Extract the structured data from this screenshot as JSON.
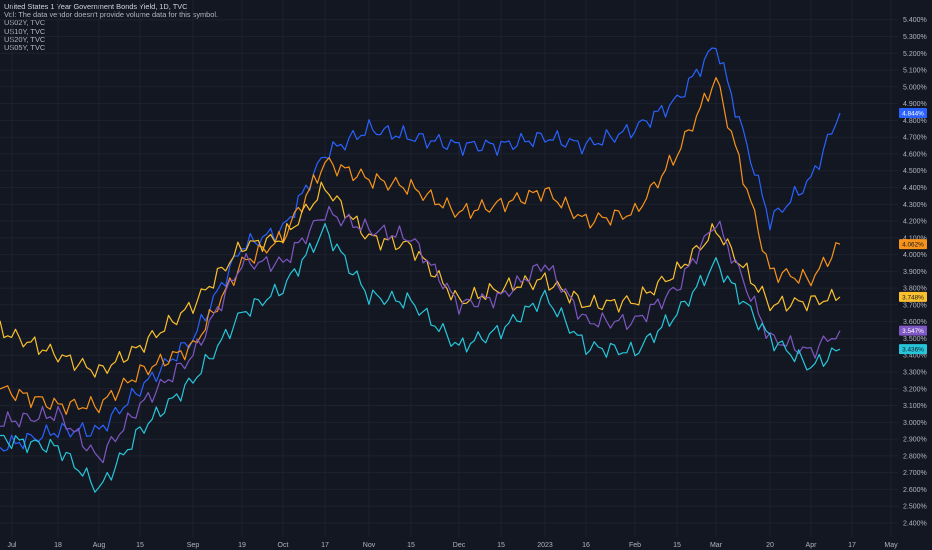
{
  "legend": {
    "title": "United States 1 Year Government Bonds Yield, 1D, TVC",
    "vol_note": "Vol: The data vendor doesn't provide volume data for this symbol.",
    "symbols": [
      "US02Y, TVC",
      "US10Y, TVC",
      "US20Y, TVC",
      "US05Y, TVC"
    ]
  },
  "currency_label": "$",
  "chart_data": {
    "type": "line",
    "grid": true,
    "ylim": [
      2.37,
      5.47
    ],
    "y_ticks": [
      "5.400%",
      "5.300%",
      "5.200%",
      "5.100%",
      "5.000%",
      "4.900%",
      "4.800%",
      "4.700%",
      "4.600%",
      "4.500%",
      "4.400%",
      "4.300%",
      "4.200%",
      "4.100%",
      "4.000%",
      "3.900%",
      "3.800%",
      "3.700%",
      "3.600%",
      "3.500%",
      "3.400%",
      "3.300%",
      "3.200%",
      "3.100%",
      "3.000%",
      "2.900%",
      "2.800%",
      "2.700%",
      "2.600%",
      "2.500%",
      "2.400%"
    ],
    "x_ticks": [
      "Jul",
      "18",
      "Aug",
      "15",
      "Sep",
      "19",
      "Oct",
      "17",
      "Nov",
      "15",
      "Dec",
      "15",
      "2023",
      "16",
      "Feb",
      "15",
      "Mar",
      "20",
      "Apr",
      "17",
      "May"
    ],
    "price_labels": [
      {
        "text": "4.844%",
        "color": "#2962ff",
        "value": 4.844
      },
      {
        "text": "4.062%",
        "color": "#f7931a",
        "value": 4.062
      },
      {
        "text": "3.748%",
        "color": "#fbc02d",
        "value": 3.748
      },
      {
        "text": "3.547%",
        "color": "#7e57c2",
        "value": 3.547
      },
      {
        "text": "3.436%",
        "color": "#26c6da",
        "value": 3.436
      }
    ],
    "series": [
      {
        "name": "",
        "color": "#2962ff",
        "points": [
          [
            "Jul",
            2.85
          ],
          [
            "18",
            2.95
          ],
          [
            "Aug",
            2.95
          ],
          [
            "15",
            3.2
          ],
          [
            "Sep",
            3.5
          ],
          [
            "19",
            4.05
          ],
          [
            "Oct",
            4.15
          ],
          [
            "17",
            4.6
          ],
          [
            "Nov",
            4.75
          ],
          [
            "15",
            4.7
          ],
          [
            "Dec",
            4.65
          ],
          [
            "15",
            4.65
          ],
          [
            "2023",
            4.7
          ],
          [
            "16",
            4.65
          ],
          [
            "Feb",
            4.75
          ],
          [
            "15",
            4.92
          ],
          [
            "Mar",
            5.25
          ],
          [
            "20",
            4.2
          ],
          [
            "Apr",
            4.45
          ],
          [
            "17",
            4.844
          ]
        ]
      },
      {
        "name": "",
        "color": "#f7931a",
        "points": [
          [
            "Jul",
            3.2
          ],
          [
            "18",
            3.1
          ],
          [
            "Aug",
            3.1
          ],
          [
            "15",
            3.3
          ],
          [
            "Sep",
            3.45
          ],
          [
            "19",
            3.95
          ],
          [
            "Oct",
            4.1
          ],
          [
            "17",
            4.55
          ],
          [
            "Nov",
            4.45
          ],
          [
            "15",
            4.4
          ],
          [
            "Dec",
            4.25
          ],
          [
            "15",
            4.3
          ],
          [
            "2023",
            4.38
          ],
          [
            "16",
            4.2
          ],
          [
            "Feb",
            4.25
          ],
          [
            "15",
            4.6
          ],
          [
            "Mar",
            5.05
          ],
          [
            "20",
            3.9
          ],
          [
            "Apr",
            3.85
          ],
          [
            "17",
            4.062
          ]
        ]
      },
      {
        "name": "",
        "color": "#fbc02d",
        "points": [
          [
            "Jul",
            3.55
          ],
          [
            "18",
            3.4
          ],
          [
            "Aug",
            3.3
          ],
          [
            "15",
            3.45
          ],
          [
            "Sep",
            3.7
          ],
          [
            "19",
            4.05
          ],
          [
            "Oct",
            4.1
          ],
          [
            "17",
            4.4
          ],
          [
            "Nov",
            4.1
          ],
          [
            "15",
            4.05
          ],
          [
            "Dec",
            3.72
          ],
          [
            "15",
            3.8
          ],
          [
            "2023",
            3.85
          ],
          [
            "16",
            3.7
          ],
          [
            "Feb",
            3.72
          ],
          [
            "15",
            3.9
          ],
          [
            "Mar",
            4.15
          ],
          [
            "20",
            3.7
          ],
          [
            "Apr",
            3.72
          ],
          [
            "17",
            3.748
          ]
        ]
      },
      {
        "name": "",
        "color": "#7e57c2",
        "points": [
          [
            "Jul",
            3.0
          ],
          [
            "18",
            3.05
          ],
          [
            "Aug",
            2.78
          ],
          [
            "15",
            3.1
          ],
          [
            "Sep",
            3.4
          ],
          [
            "19",
            3.95
          ],
          [
            "Oct",
            3.95
          ],
          [
            "17",
            4.25
          ],
          [
            "Nov",
            4.15
          ],
          [
            "15",
            4.1
          ],
          [
            "Dec",
            3.7
          ],
          [
            "15",
            3.75
          ],
          [
            "2023",
            3.95
          ],
          [
            "16",
            3.6
          ],
          [
            "Feb",
            3.6
          ],
          [
            "15",
            3.8
          ],
          [
            "Mar",
            4.2
          ],
          [
            "20",
            3.5
          ],
          [
            "Apr",
            3.42
          ],
          [
            "17",
            3.547
          ]
        ]
      },
      {
        "name": "",
        "color": "#26c6da",
        "points": [
          [
            "Jul",
            2.9
          ],
          [
            "18",
            2.85
          ],
          [
            "Aug",
            2.6
          ],
          [
            "15",
            2.95
          ],
          [
            "Sep",
            3.25
          ],
          [
            "19",
            3.65
          ],
          [
            "Oct",
            3.8
          ],
          [
            "17",
            4.15
          ],
          [
            "Nov",
            3.75
          ],
          [
            "15",
            3.72
          ],
          [
            "Dec",
            3.45
          ],
          [
            "15",
            3.55
          ],
          [
            "2023",
            3.75
          ],
          [
            "16",
            3.45
          ],
          [
            "Feb",
            3.42
          ],
          [
            "15",
            3.65
          ],
          [
            "Mar",
            3.95
          ],
          [
            "20",
            3.5
          ],
          [
            "Apr",
            3.33
          ],
          [
            "17",
            3.436
          ]
        ]
      }
    ]
  }
}
